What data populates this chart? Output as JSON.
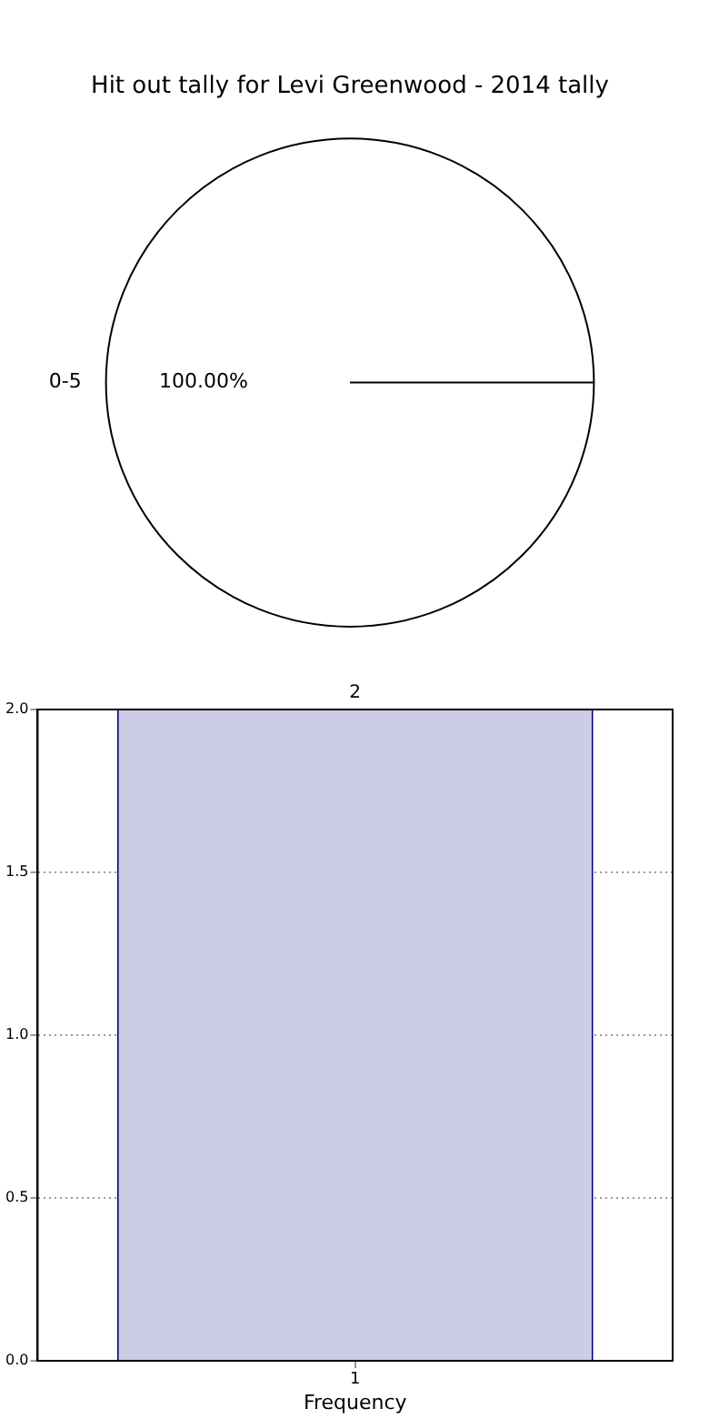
{
  "chart_data": [
    {
      "type": "pie",
      "title": "Hit out tally for Levi Greenwood - 2014 tally",
      "categories": [
        "0-5"
      ],
      "values": [
        100
      ],
      "colors": [
        "#ffffff"
      ],
      "value_labels": [
        "100.00%"
      ]
    },
    {
      "type": "bar",
      "categories": [
        "1"
      ],
      "values": [
        2
      ],
      "color": "#cccce4",
      "data_labels": true,
      "xlabel": "Frequency",
      "ylim": [
        0,
        2
      ],
      "yticks": [
        {
          "value": 0,
          "label": "0.0"
        },
        {
          "value": 0.5,
          "label": "0.5"
        },
        {
          "value": 1,
          "label": "1.0"
        },
        {
          "value": 1.5,
          "label": "1.5"
        },
        {
          "value": 2,
          "label": "2.0"
        }
      ],
      "grid": true
    }
  ]
}
